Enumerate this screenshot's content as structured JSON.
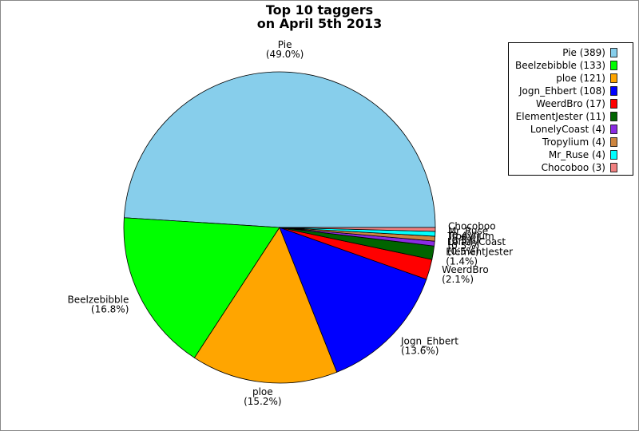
{
  "chart_data": {
    "type": "pie",
    "title_lines": [
      "Top 10 taggers",
      "on April 5th 2013"
    ],
    "categories": [
      "Pie",
      "Beelzebibble",
      "ploe",
      "Jogn_Ehbert",
      "WeerdBro",
      "ElementJester",
      "LonelyCoast",
      "Tropylium",
      "Mr_Ruse",
      "Chocoboo"
    ],
    "values": [
      49.0,
      16.8,
      15.2,
      13.6,
      2.1,
      1.4,
      0.5,
      0.5,
      0.5,
      0.4
    ],
    "value_labels": [
      "(49.0%)",
      "(16.8%)",
      "(15.2%)",
      "(13.6%)",
      "(2.1%)",
      "(1.4%)",
      "(0.5%)",
      "(0.5%)",
      "(0.5%)",
      "(0.4%)"
    ],
    "legend_labels": [
      "Pie (389)",
      "Beelzebibble (133)",
      "ploe (121)",
      "Jogn_Ehbert (108)",
      "WeerdBro (17)",
      "ElementJester (11)",
      "LonelyCoast (4)",
      "Tropylium (4)",
      "Mr_Ruse (4)",
      "Chocoboo (3)"
    ],
    "colors": [
      "#87ceeb",
      "#00ff00",
      "#ffa500",
      "#0000ff",
      "#ff0000",
      "#006400",
      "#8a2be2",
      "#cd853f",
      "#00ffff",
      "#f08080"
    ],
    "legend": "upper right"
  }
}
